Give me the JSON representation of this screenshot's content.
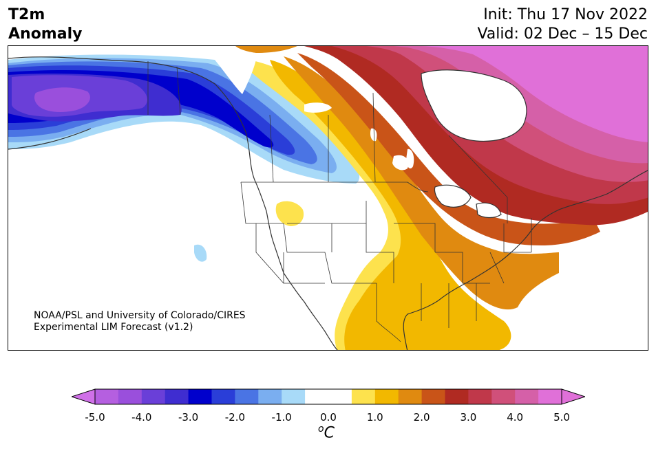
{
  "title": {
    "line1": "T2m",
    "line2": "Anomaly"
  },
  "run": {
    "init": "Init: Thu 17 Nov 2022",
    "valid": "Valid: 02 Dec – 15 Dec"
  },
  "credit": {
    "line1": "NOAA/PSL and University of Colorado/CIRES",
    "line2": "Experimental LIM Forecast (v1.2)"
  },
  "colorbar": {
    "unit_symbol": "C",
    "unit_prefix": "o",
    "ticks": [
      "-5.0",
      "-4.0",
      "-3.0",
      "-2.0",
      "-1.0",
      "0.0",
      "1.0",
      "2.0",
      "3.0",
      "4.0",
      "5.0"
    ],
    "bins": [
      "#b55fe0",
      "#9a4fdc",
      "#6a3fd8",
      "#3f2dd0",
      "#0000cc",
      "#2a3ed8",
      "#4a74e4",
      "#7aaef0",
      "#a8daf8",
      "#ffffff",
      "#ffffff",
      "#fde24d",
      "#f2b800",
      "#e08a10",
      "#c95418",
      "#b02a22",
      "#c0384a",
      "#d0507a",
      "#d560a8",
      "#e070d8"
    ],
    "extend_low_color": "#d070e8",
    "extend_high_color": "#e070d8"
  }
}
